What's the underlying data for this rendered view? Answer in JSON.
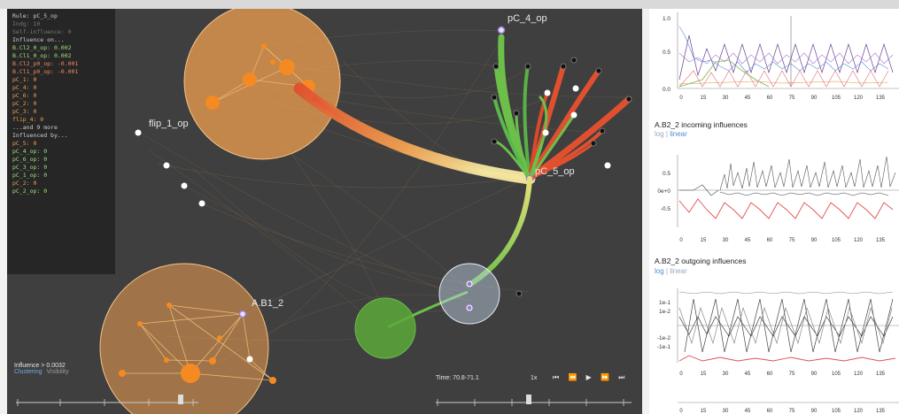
{
  "info_panel": {
    "node": "Rule: pC_5_op",
    "indeg": "Indg: 10",
    "self_influence": "Self-influence: 0",
    "influence_on_header": "Influence on...",
    "influence_on": [
      {
        "label": "B.Cl2_0_op: 0.002",
        "color": "#9ee27a"
      },
      {
        "label": "B.Cl1_0_op: 0.002",
        "color": "#9ee27a"
      },
      {
        "label": "B.Cl2_p0_op: -0.001",
        "color": "#f08a5a"
      },
      {
        "label": "B.Cl1_p0_op: -0.001",
        "color": "#f08a5a"
      },
      {
        "label": "pC_1: 0",
        "color": "#f0a050"
      },
      {
        "label": "pC_4: 0",
        "color": "#f0a050"
      },
      {
        "label": "pC_6: 0",
        "color": "#f0a050"
      },
      {
        "label": "pC_2: 0",
        "color": "#f0a050"
      },
      {
        "label": "pC_3: 0",
        "color": "#f0a050"
      },
      {
        "label": "flip_4: 0",
        "color": "#f0a050"
      }
    ],
    "more": "...and 9 more",
    "influenced_by_header": "Influenced by...",
    "influenced_by": [
      {
        "label": "pC_5: 0",
        "color": "#f0a050"
      },
      {
        "label": "pC_4_op: 0",
        "color": "#9ee27a"
      },
      {
        "label": "pC_6_op: 0",
        "color": "#9ee27a"
      },
      {
        "label": "pC_3_op: 0",
        "color": "#9ee27a"
      },
      {
        "label": "pC_1_op: 0",
        "color": "#9ee27a"
      },
      {
        "label": "pC_2: 0",
        "color": "#f0a050"
      },
      {
        "label": "pC_2_op: 0",
        "color": "#9ee27a"
      }
    ]
  },
  "node_labels": {
    "pc4": "pC_4_op",
    "pc5": "pC_5_op",
    "flip": "flip_1_op",
    "ab1": "A.B1_2"
  },
  "influence_panel": {
    "threshold": "Influence > 0.0032",
    "clustering": "Clustering",
    "visibility": "Visibility",
    "scale_ticks": [
      "1e-6",
      "1e-5",
      "1e-4",
      "1e-3"
    ]
  },
  "time_panel": {
    "time": "Time: 70.8-71.1",
    "speed": "1x",
    "controls": [
      "⏮",
      "⏪",
      "▶",
      "⏩",
      "⏭"
    ],
    "scale_ticks": [
      "0",
      "20",
      "40",
      "60",
      "80",
      "100"
    ]
  },
  "right_panels": {
    "chart1": {
      "y_ticks": [
        "1.0",
        "0.5",
        "0.0"
      ]
    },
    "chart2": {
      "title": "A.B2_2 incoming influences",
      "toggle_log": "log",
      "toggle_sep": " | ",
      "toggle_linear": "linear",
      "y_ticks": [
        "0.5",
        "0e+0",
        "-0.5"
      ]
    },
    "chart3": {
      "title": "A.B2_2 outgoing influences",
      "toggle_log": "log",
      "toggle_sep": " | ",
      "toggle_linear": "linear",
      "y_ticks": [
        "1e-1",
        "1e-2",
        "-1e-2",
        "-1e-1"
      ]
    },
    "x_ticks": [
      "0",
      "15",
      "30",
      "45",
      "60",
      "75",
      "90",
      "105",
      "120",
      "135"
    ]
  },
  "colors": {
    "background": "#3f3f3f",
    "cluster_orange": "#f0a050",
    "cluster_green": "#5aa83a",
    "cluster_blue": "#c5d7ee",
    "edge_green": "#6cc04a",
    "edge_red": "#e0502f",
    "link_blue": "#4a8fd8"
  }
}
